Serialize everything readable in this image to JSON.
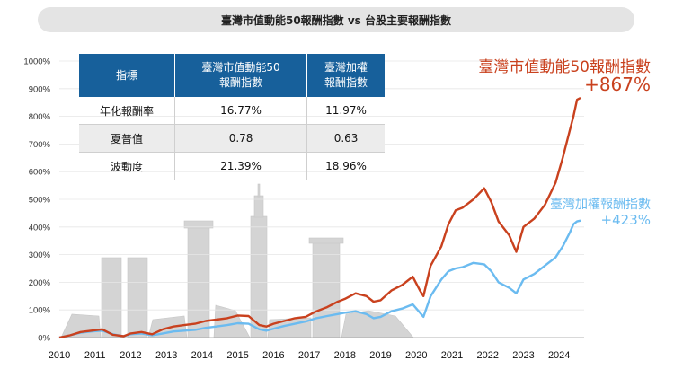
{
  "chart_data": {
    "type": "line",
    "title": "臺灣市值動能50報酬指數 vs 台股主要報酬指數",
    "x_ticks": [
      "2010",
      "2011",
      "2012",
      "2013",
      "2014",
      "2015",
      "2016",
      "2017",
      "2018",
      "2019",
      "2020",
      "2021",
      "2022",
      "2023",
      "2024"
    ],
    "y_ticks": [
      "0%",
      "100%",
      "200%",
      "300%",
      "400%",
      "500%",
      "600%",
      "700%",
      "800%",
      "900%",
      "1000%"
    ],
    "ylim": [
      0,
      1000
    ],
    "xlim": [
      2010,
      2024.7
    ],
    "series": [
      {
        "name": "臺灣市值動能50報酬指數",
        "color": "#c9411e",
        "end_label": "+867%",
        "x": [
          2010.0,
          2010.3,
          2010.6,
          2010.9,
          2011.2,
          2011.5,
          2011.8,
          2012.0,
          2012.3,
          2012.6,
          2012.9,
          2013.2,
          2013.5,
          2013.8,
          2014.1,
          2014.4,
          2014.7,
          2015.0,
          2015.3,
          2015.6,
          2015.8,
          2016.0,
          2016.3,
          2016.6,
          2016.9,
          2017.2,
          2017.5,
          2017.8,
          2018.0,
          2018.3,
          2018.6,
          2018.8,
          2019.0,
          2019.3,
          2019.6,
          2019.9,
          2020.1,
          2020.2,
          2020.4,
          2020.7,
          2020.9,
          2021.1,
          2021.3,
          2021.6,
          2021.9,
          2022.1,
          2022.3,
          2022.6,
          2022.8,
          2023.0,
          2023.3,
          2023.6,
          2023.9,
          2024.1,
          2024.3,
          2024.4,
          2024.5,
          2024.6
        ],
        "y": [
          0,
          8,
          20,
          25,
          30,
          10,
          5,
          15,
          20,
          12,
          30,
          40,
          45,
          50,
          60,
          65,
          70,
          80,
          78,
          45,
          40,
          50,
          60,
          70,
          75,
          95,
          110,
          130,
          140,
          160,
          150,
          130,
          135,
          170,
          190,
          220,
          170,
          150,
          260,
          330,
          410,
          460,
          470,
          500,
          540,
          490,
          420,
          370,
          310,
          400,
          430,
          480,
          560,
          650,
          750,
          800,
          860,
          867
        ]
      },
      {
        "name": "臺灣加權報酬指數",
        "color": "#6bbbf0",
        "end_label": "+423%",
        "x": [
          2010.0,
          2010.3,
          2010.6,
          2010.9,
          2011.2,
          2011.5,
          2011.8,
          2012.0,
          2012.3,
          2012.6,
          2012.9,
          2013.2,
          2013.5,
          2013.8,
          2014.1,
          2014.4,
          2014.7,
          2015.0,
          2015.3,
          2015.6,
          2015.8,
          2016.0,
          2016.3,
          2016.6,
          2016.9,
          2017.2,
          2017.5,
          2017.8,
          2018.0,
          2018.3,
          2018.6,
          2018.8,
          2019.0,
          2019.3,
          2019.6,
          2019.9,
          2020.1,
          2020.2,
          2020.4,
          2020.7,
          2020.9,
          2021.1,
          2021.3,
          2021.6,
          2021.9,
          2022.1,
          2022.3,
          2022.6,
          2022.8,
          2023.0,
          2023.3,
          2023.6,
          2023.9,
          2024.1,
          2024.3,
          2024.4,
          2024.5,
          2024.6
        ],
        "y": [
          0,
          8,
          18,
          22,
          25,
          12,
          5,
          12,
          15,
          8,
          15,
          22,
          25,
          28,
          35,
          40,
          45,
          52,
          50,
          30,
          25,
          32,
          42,
          50,
          58,
          70,
          78,
          85,
          90,
          95,
          85,
          70,
          75,
          95,
          105,
          120,
          90,
          75,
          150,
          210,
          240,
          250,
          255,
          270,
          265,
          240,
          200,
          180,
          160,
          210,
          230,
          260,
          290,
          330,
          380,
          410,
          420,
          423
        ]
      }
    ]
  },
  "table": {
    "headers": [
      "指標",
      "臺灣市值動能50\n報酬指數",
      "臺灣加權\n報酬指數"
    ],
    "rows": [
      [
        "年化報酬率",
        "16.77%",
        "11.97%"
      ],
      [
        "夏普值",
        "0.78",
        "0.63"
      ],
      [
        "波動度",
        "21.39%",
        "18.96%"
      ]
    ]
  }
}
